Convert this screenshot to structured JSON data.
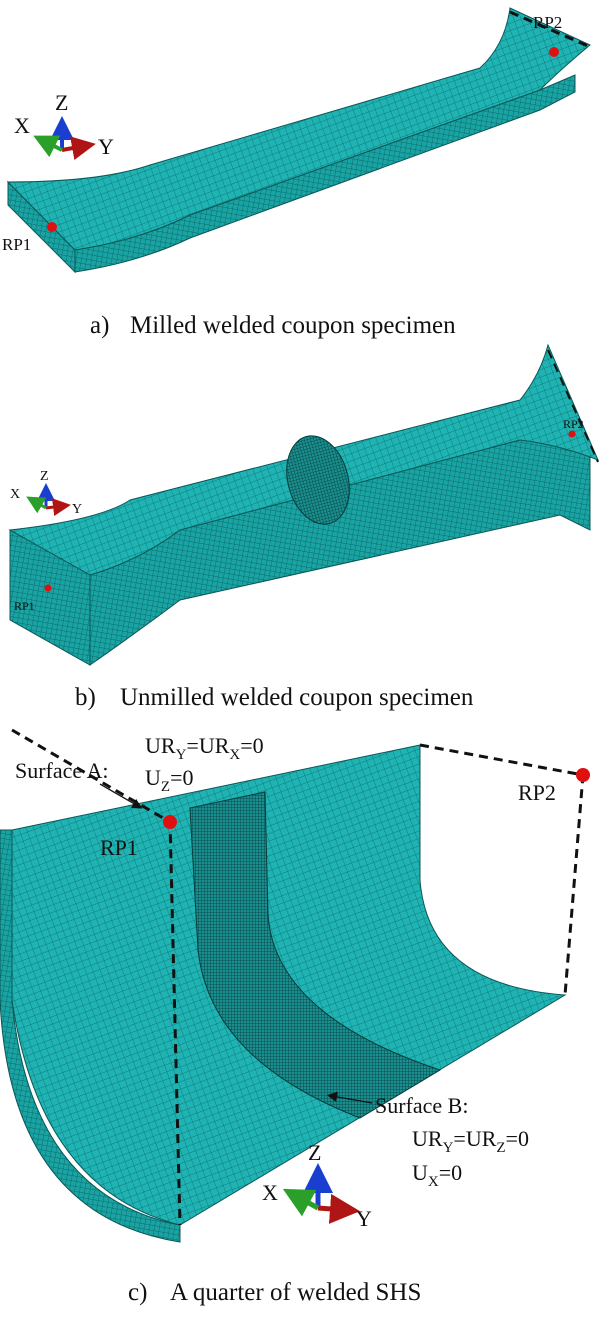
{
  "panels": [
    {
      "label": "a)",
      "caption": "Milled welded coupon specimen",
      "rp1": "RP1",
      "rp2": "RP2",
      "axes": {
        "x": "X",
        "y": "Y",
        "z": "Z"
      }
    },
    {
      "label": "b)",
      "caption": "Unmilled welded coupon specimen",
      "rp1": "RP1",
      "rp2": "RP2",
      "axes": {
        "x": "X",
        "y": "Y",
        "z": "Z"
      }
    },
    {
      "label": "c)",
      "caption": "A quarter of welded SHS",
      "rp1": "RP1",
      "rp2": "RP2",
      "axes": {
        "x": "X",
        "y": "Y",
        "z": "Z"
      },
      "surface_a": {
        "title": "Surface A:",
        "conditions": [
          [
            "UR",
            "Y",
            "=UR",
            "X",
            "=0"
          ],
          [
            "U",
            "Z",
            "=0"
          ]
        ]
      },
      "surface_b": {
        "title": "Surface B:",
        "conditions": [
          [
            "UR",
            "Y",
            "=UR",
            "Z",
            "=0"
          ],
          [
            "U",
            "X",
            "=0"
          ]
        ]
      }
    }
  ]
}
